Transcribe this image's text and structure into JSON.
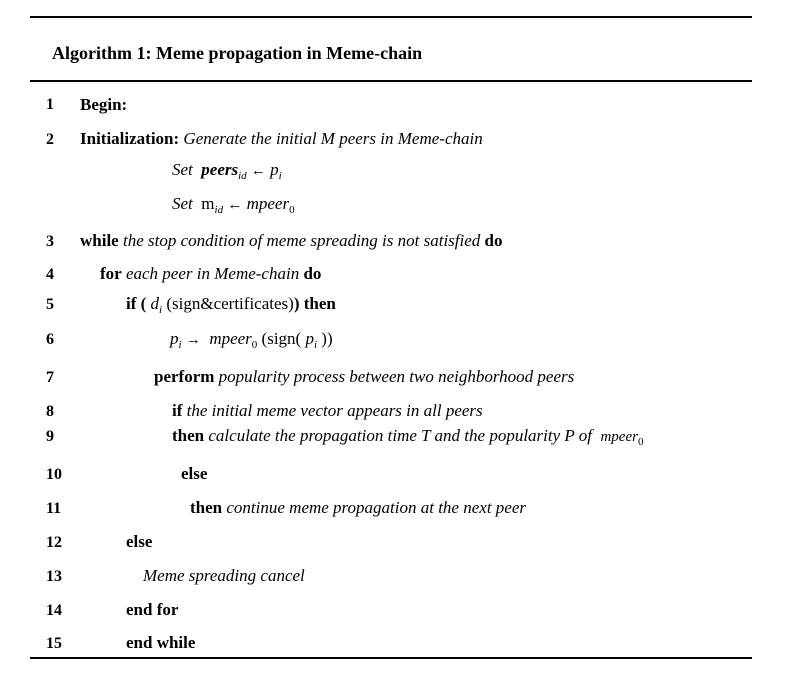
{
  "title": "Algorithm 1: Meme propagation in Meme-chain",
  "lines": [
    {
      "num": "1",
      "kw1": "Begin:"
    },
    {
      "num": "2",
      "kw1": "Initialization:",
      "text": "Generate the initial M peers in Meme-chain"
    },
    {
      "set1": {
        "label": "Set",
        "var": "peers",
        "sub": "id",
        "arrow": "←",
        "rhs": "p",
        "rhs_sub": "i"
      }
    },
    {
      "set2": {
        "label": "Set",
        "var": "m",
        "sub": "id",
        "arrow": "←",
        "rhs": "mpeer",
        "rhs_sub": "0"
      }
    },
    {
      "num": "3",
      "kw1": "while",
      "text": "the stop condition of meme spreading is not satisfied",
      "kw2": "do"
    },
    {
      "num": "4",
      "kw1": "for",
      "text": "each peer in Meme-chain",
      "kw2": "do"
    },
    {
      "num": "5",
      "kw1": "if (",
      "var": "d",
      "sub": "i",
      "text": "(sign&certificates)",
      "kw2": ") then"
    },
    {
      "num": "6",
      "var1": "p",
      "sub1": "i",
      "arrow": "→",
      "var2": "mpeer",
      "sub2": "0",
      "text": "(sign(",
      "var3": "p",
      "sub3": "i",
      "end": "))"
    },
    {
      "num": "7",
      "kw1": "perform",
      "text": "popularity process between two neighborhood peers"
    },
    {
      "num": "8",
      "kw1": "if",
      "text": "the initial meme vector appears in all peers"
    },
    {
      "num": "9",
      "kw1": "then",
      "text": "calculate the propagation time T and the popularity P of",
      "var": "mpeer",
      "sub": "0"
    },
    {
      "num": "10",
      "kw1": "else"
    },
    {
      "num": "11",
      "kw1": "then",
      "text": "continue meme propagation at the next peer"
    },
    {
      "num": "12",
      "kw1": "else"
    },
    {
      "num": "13",
      "text": "Meme spreading cancel"
    },
    {
      "num": "14",
      "kw1": "end for"
    },
    {
      "num": "15",
      "kw1": "end while"
    }
  ]
}
